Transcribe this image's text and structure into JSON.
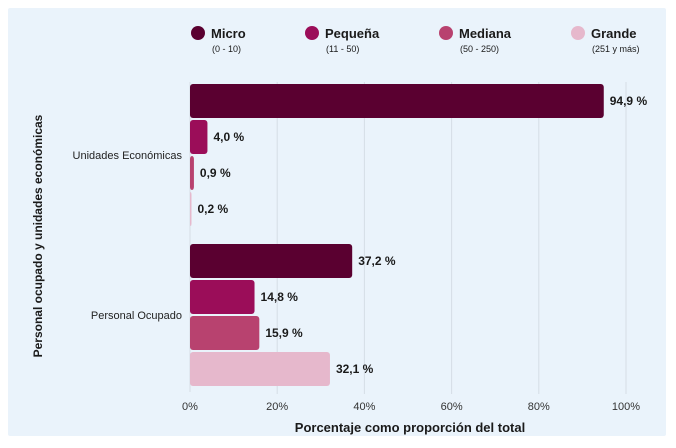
{
  "chart_data": {
    "type": "bar",
    "orientation": "horizontal",
    "xlabel": "Porcentaje como proporción del total",
    "ylabel": "Personal ocupado y unidades económicas",
    "xlim": [
      0,
      100
    ],
    "xticks": [
      "0%",
      "20%",
      "40%",
      "60%",
      "80%",
      "100%"
    ],
    "grid": true,
    "legend_position": "top",
    "categories": [
      "Unidades Económicas",
      "Personal Ocupado"
    ],
    "series": [
      {
        "name": "Micro",
        "range": "(0 - 10)",
        "color": "#5a0030",
        "values": [
          94.9,
          37.2
        ],
        "labels": [
          "94,9 %",
          "37,2 %"
        ]
      },
      {
        "name": "Pequeña",
        "range": "(11 - 50)",
        "color": "#9b0d59",
        "values": [
          4.0,
          14.8
        ],
        "labels": [
          "4,0 %",
          "14,8 %"
        ]
      },
      {
        "name": "Mediana",
        "range": "(50 - 250)",
        "color": "#b8426f",
        "values": [
          0.9,
          15.9
        ],
        "labels": [
          "0,9 %",
          "15,9 %"
        ]
      },
      {
        "name": "Grande",
        "range": "(251 y más)",
        "color": "#e6b8cc",
        "values": [
          0.2,
          32.1
        ],
        "labels": [
          "0,2 %",
          "32,1 %"
        ]
      }
    ],
    "background_color": "#eaf3fb"
  }
}
